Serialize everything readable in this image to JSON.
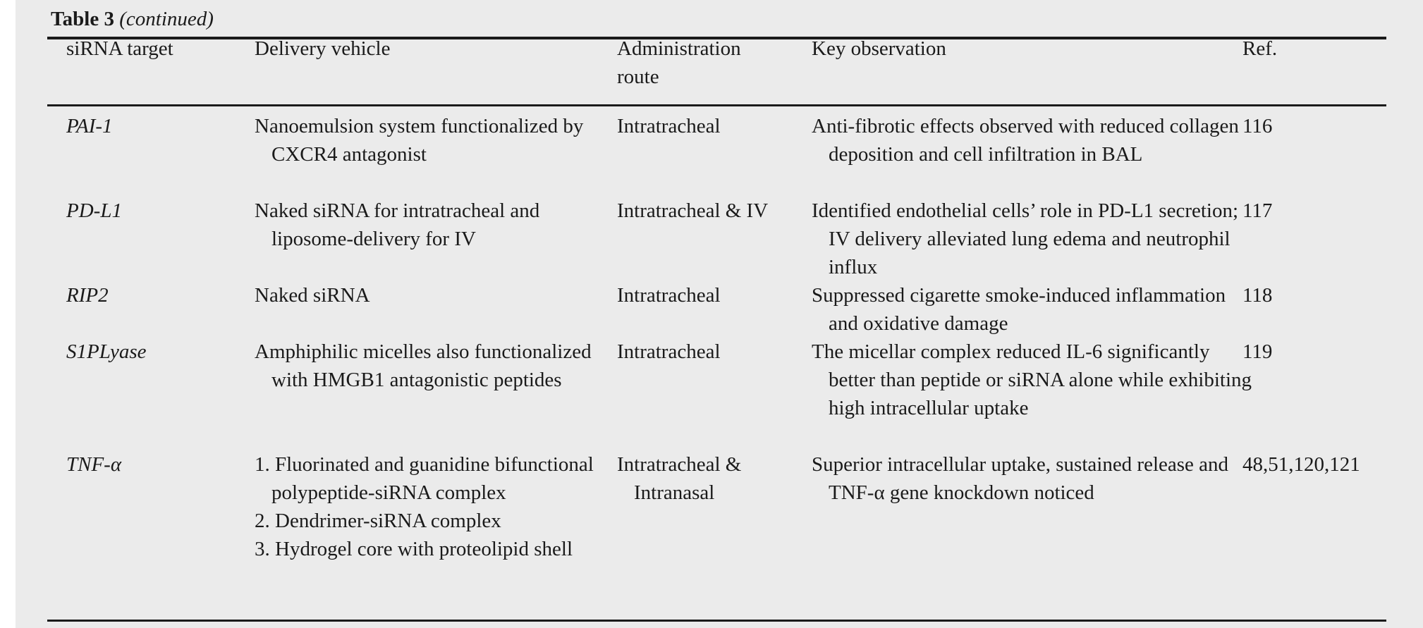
{
  "caption": {
    "label": "Table 3",
    "continued": "(continued)"
  },
  "headers": {
    "target": "siRNA target",
    "vehicle": "Delivery vehicle",
    "route_line1": "Administration",
    "route_line2": "route",
    "observation": "Key observation",
    "ref": "Ref."
  },
  "rows": [
    {
      "target": "PAI-1",
      "vehicle": "Nanoemulsion system functionalized by CXCR4 antagonist",
      "route": "Intratracheal",
      "observation": "Anti-fibrotic effects observed with reduced collagen deposition and cell infiltration in BAL",
      "ref": "116"
    },
    {
      "target": "PD-L1",
      "vehicle": "Naked siRNA for intratracheal and liposome-delivery for IV",
      "route": "Intratracheal & IV",
      "observation": "Identified endothelial cells’ role in PD-L1 secretion; IV delivery alleviated lung edema and neutrophil influx",
      "ref": "117"
    },
    {
      "target": "RIP2",
      "vehicle": "Naked siRNA",
      "route": "Intratracheal",
      "observation": "Suppressed cigarette smoke-induced inflammation and oxidative damage",
      "ref": "118"
    },
    {
      "target": "S1PLyase",
      "vehicle": "Amphiphilic micelles also functionalized with HMGB1 antagonistic peptides",
      "route": "Intratracheal",
      "observation": "The micellar complex reduced IL-6 significantly better than peptide or siRNA alone while exhibiting high intracellular uptake",
      "ref": "119"
    },
    {
      "target": "TNF-α",
      "vehicle_items": [
        "1. Fluorinated and guanidine bifunctional polypeptide-siRNA complex",
        "2. Dendrimer-siRNA complex",
        "3. Hydrogel core with proteolipid shell"
      ],
      "route": "Intratracheal & Intranasal",
      "observation": "Superior intracellular uptake, sustained release and TNF-α gene knockdown noticed",
      "ref": "48,51,120,121"
    }
  ]
}
